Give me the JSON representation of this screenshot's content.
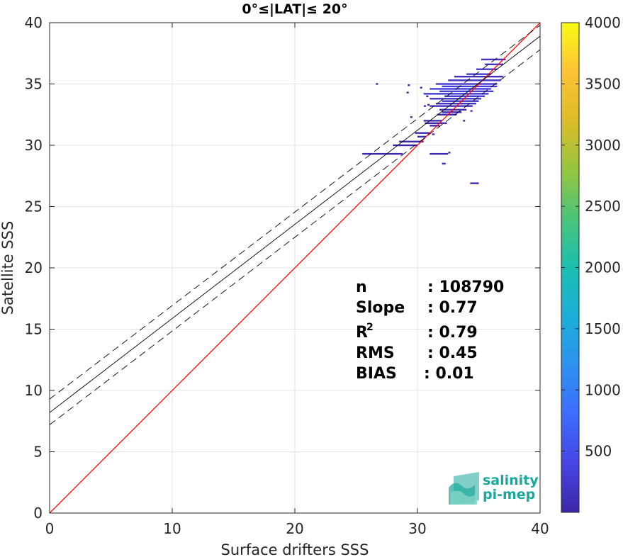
{
  "chart_data": {
    "type": "scatter",
    "title": "0°≤|LAT|≤ 20°",
    "xlabel": "Surface drifters SSS",
    "ylabel": "Satellite SSS",
    "xlim": [
      0,
      40
    ],
    "ylim": [
      0,
      40
    ],
    "x_ticks": [
      "0",
      "10",
      "20",
      "30",
      "40"
    ],
    "y_ticks": [
      "0",
      "5",
      "10",
      "15",
      "20",
      "25",
      "30",
      "35",
      "40"
    ],
    "grid": true,
    "lines": [
      {
        "name": "1:1",
        "color": "#ff0000",
        "style": "solid",
        "x": [
          0,
          40
        ],
        "y": [
          0,
          40
        ]
      },
      {
        "name": "fit",
        "color": "#000000",
        "style": "solid",
        "x": [
          0,
          40
        ],
        "y": [
          8.2,
          38.9
        ]
      },
      {
        "name": "fit-upper",
        "color": "#000000",
        "style": "dashed",
        "x": [
          0,
          40
        ],
        "y": [
          9.3,
          39.8
        ]
      },
      {
        "name": "fit-lower",
        "color": "#000000",
        "style": "dashed",
        "x": [
          0,
          40
        ],
        "y": [
          7.2,
          37.8
        ]
      }
    ],
    "density_segments": [
      {
        "x1": 33.0,
        "x2": 37.0,
        "y": 35.6,
        "count": 120
      },
      {
        "x1": 32.5,
        "x2": 36.8,
        "y": 35.3,
        "count": 180
      },
      {
        "x1": 31.5,
        "x2": 36.5,
        "y": 35.0,
        "count": 250
      },
      {
        "x1": 32.0,
        "x2": 36.5,
        "y": 34.8,
        "count": 300
      },
      {
        "x1": 31.0,
        "x2": 36.0,
        "y": 34.6,
        "count": 350
      },
      {
        "x1": 31.8,
        "x2": 36.2,
        "y": 34.4,
        "count": 320
      },
      {
        "x1": 30.5,
        "x2": 35.8,
        "y": 34.2,
        "count": 280
      },
      {
        "x1": 32.2,
        "x2": 35.5,
        "y": 34.0,
        "count": 300
      },
      {
        "x1": 31.0,
        "x2": 35.2,
        "y": 33.8,
        "count": 240
      },
      {
        "x1": 32.0,
        "x2": 35.0,
        "y": 33.6,
        "count": 200
      },
      {
        "x1": 31.5,
        "x2": 34.8,
        "y": 33.4,
        "count": 160
      },
      {
        "x1": 31.0,
        "x2": 34.5,
        "y": 33.2,
        "count": 130
      },
      {
        "x1": 31.8,
        "x2": 34.0,
        "y": 32.9,
        "count": 100
      },
      {
        "x1": 32.0,
        "x2": 33.6,
        "y": 32.7,
        "count": 80
      },
      {
        "x1": 31.6,
        "x2": 33.2,
        "y": 32.5,
        "count": 60
      },
      {
        "x1": 30.5,
        "x2": 32.0,
        "y": 32.0,
        "count": 40
      },
      {
        "x1": 30.6,
        "x2": 32.4,
        "y": 31.8,
        "count": 35
      },
      {
        "x1": 31.0,
        "x2": 31.8,
        "y": 31.6,
        "count": 30
      },
      {
        "x1": 29.8,
        "x2": 31.0,
        "y": 31.0,
        "count": 25
      },
      {
        "x1": 30.0,
        "x2": 30.7,
        "y": 30.7,
        "count": 20
      },
      {
        "x1": 28.5,
        "x2": 30.5,
        "y": 30.3,
        "count": 20
      },
      {
        "x1": 28.0,
        "x2": 30.0,
        "y": 30.0,
        "count": 15
      },
      {
        "x1": 25.5,
        "x2": 28.8,
        "y": 29.3,
        "count": 15
      },
      {
        "x1": 31.0,
        "x2": 32.5,
        "y": 29.3,
        "count": 10
      },
      {
        "x1": 32.0,
        "x2": 32.3,
        "y": 28.5,
        "count": 10
      },
      {
        "x1": 34.3,
        "x2": 35.0,
        "y": 26.9,
        "count": 10
      },
      {
        "x1": 35.2,
        "x2": 37.2,
        "y": 37.0,
        "count": 150
      },
      {
        "x1": 35.5,
        "x2": 37.0,
        "y": 36.6,
        "count": 200
      },
      {
        "x1": 34.8,
        "x2": 36.5,
        "y": 36.2,
        "count": 260
      },
      {
        "x1": 34.0,
        "x2": 36.0,
        "y": 35.8,
        "count": 300
      }
    ],
    "single_points": [
      {
        "x": 26.7,
        "y": 35.0
      },
      {
        "x": 29.3,
        "y": 34.9
      },
      {
        "x": 29.2,
        "y": 34.3
      },
      {
        "x": 30.3,
        "y": 34.7
      },
      {
        "x": 30.8,
        "y": 34.0
      },
      {
        "x": 30.9,
        "y": 33.3
      },
      {
        "x": 29.5,
        "y": 32.3
      },
      {
        "x": 33.8,
        "y": 32.0
      },
      {
        "x": 34.4,
        "y": 32.8
      },
      {
        "x": 30.6,
        "y": 33.2
      },
      {
        "x": 31.3,
        "y": 30.9
      },
      {
        "x": 32.6,
        "y": 29.4
      }
    ],
    "colorbar": {
      "min": 0,
      "max": 4000,
      "ticks": [
        "500",
        "1000",
        "1500",
        "2000",
        "2500",
        "3000",
        "3500",
        "4000"
      ],
      "colormap": [
        "#3e26a8",
        "#4745e4",
        "#3d6cfe",
        "#2e91f0",
        "#1caed9",
        "#1bbfb0",
        "#4ac47a",
        "#96c53f",
        "#dcbc28",
        "#fdc236",
        "#f9fb15"
      ]
    },
    "stats": [
      {
        "label": "n",
        "value": ": 108790"
      },
      {
        "label": "Slope",
        "value": ": 0.77"
      },
      {
        "label": "R",
        "sup": "2",
        "value": ": 0.79"
      },
      {
        "label": "RMS",
        "value": ": 0.45"
      },
      {
        "label": "BIAS",
        "value": ": 0.01"
      }
    ]
  },
  "logo": {
    "line1": "salinity",
    "line2": "pi-mep",
    "color": "#1aa89a"
  }
}
